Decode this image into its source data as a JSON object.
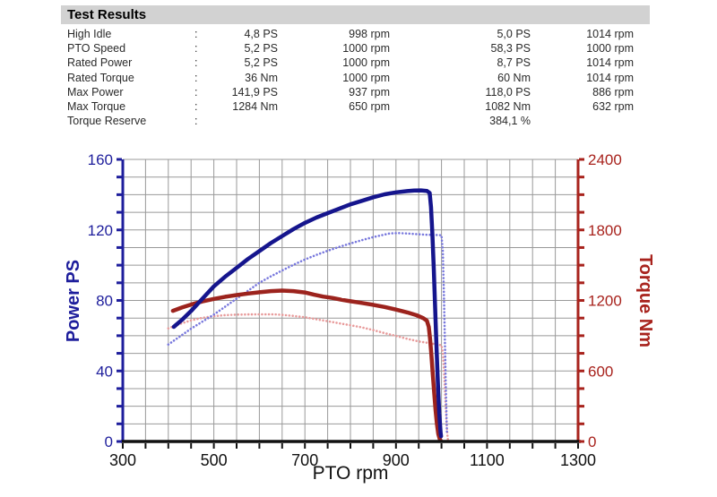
{
  "header": {
    "title": "Test Results"
  },
  "table": {
    "rows": [
      {
        "label": "High Idle",
        "colon": ":",
        "v1": "4,8 PS",
        "v2": "998 rpm",
        "v3": "5,0 PS",
        "v4": "1014 rpm"
      },
      {
        "label": "PTO Speed",
        "colon": ":",
        "v1": "5,2 PS",
        "v2": "1000 rpm",
        "v3": "58,3 PS",
        "v4": "1000 rpm"
      },
      {
        "label": "Rated Power",
        "colon": ":",
        "v1": "5,2 PS",
        "v2": "1000 rpm",
        "v3": "8,7 PS",
        "v4": "1014 rpm"
      },
      {
        "label": "Rated Torque",
        "colon": ":",
        "v1": "36 Nm",
        "v2": "1000 rpm",
        "v3": "60 Nm",
        "v4": "1014 rpm"
      },
      {
        "label": "Max Power",
        "colon": ":",
        "v1": "141,9 PS",
        "v2": "937 rpm",
        "v3": "118,0 PS",
        "v4": "886 rpm"
      },
      {
        "label": "Max Torque",
        "colon": ":",
        "v1": "1284 Nm",
        "v2": "650 rpm",
        "v3": "1082 Nm",
        "v4": "632 rpm"
      },
      {
        "label": "Torque Reserve",
        "colon": ":",
        "v1": "",
        "v2": "",
        "v3": "384,1 %",
        "v4": ""
      }
    ]
  },
  "chart_data": {
    "type": "line",
    "title": "",
    "xlabel": "PTO rpm",
    "ylabel_left": "Power PS",
    "ylabel_right": "Torque Nm",
    "grid": true,
    "legend": "none",
    "colors": {
      "grid": "#999999",
      "x_axis": "#111111",
      "left_axis": "#1e1e9c",
      "right_axis": "#a8231d",
      "power_main": "#15158d",
      "power_pto": "#7878dd",
      "torque_main": "#9c231d",
      "torque_pto": "#e89b9b"
    },
    "x_axis": {
      "min": 300,
      "max": 1300,
      "grid_step": 50,
      "labels": [
        300,
        500,
        700,
        900,
        1100,
        1300
      ]
    },
    "y_left": {
      "min": 0,
      "max": 160,
      "grid_step": 10,
      "labels": [
        0,
        40,
        80,
        120,
        160
      ]
    },
    "y_right": {
      "min": 0,
      "max": 2400,
      "grid_step": 150,
      "labels": [
        0,
        600,
        1200,
        1800,
        2400
      ]
    },
    "series": [
      {
        "name": "torque-pto",
        "axis": "right",
        "unit": "Nm",
        "style": "dotted",
        "width": 2.6,
        "points": [
          [
            400,
            962
          ],
          [
            425,
            1000
          ],
          [
            450,
            1030
          ],
          [
            475,
            1052
          ],
          [
            500,
            1066
          ],
          [
            525,
            1075
          ],
          [
            550,
            1079
          ],
          [
            575,
            1081
          ],
          [
            600,
            1082
          ],
          [
            632,
            1082
          ],
          [
            650,
            1077
          ],
          [
            675,
            1068
          ],
          [
            700,
            1057
          ],
          [
            725,
            1040
          ],
          [
            750,
            1023
          ],
          [
            775,
            1006
          ],
          [
            800,
            989
          ],
          [
            825,
            971
          ],
          [
            850,
            948
          ],
          [
            875,
            922
          ],
          [
            900,
            898
          ],
          [
            925,
            873
          ],
          [
            950,
            851
          ],
          [
            975,
            836
          ],
          [
            990,
            826
          ],
          [
            1000,
            818
          ],
          [
            1003,
            755
          ],
          [
            1005,
            635
          ],
          [
            1007,
            478
          ],
          [
            1009,
            315
          ],
          [
            1011,
            165
          ],
          [
            1013,
            55
          ],
          [
            1014,
            18
          ]
        ]
      },
      {
        "name": "power-pto",
        "axis": "left",
        "unit": "PS",
        "style": "dotted",
        "width": 2.6,
        "points": [
          [
            400,
            55
          ],
          [
            425,
            59.5
          ],
          [
            450,
            64
          ],
          [
            475,
            68
          ],
          [
            500,
            72
          ],
          [
            525,
            76.5
          ],
          [
            550,
            81
          ],
          [
            575,
            85.5
          ],
          [
            600,
            90
          ],
          [
            625,
            93.6
          ],
          [
            650,
            97
          ],
          [
            675,
            100.2
          ],
          [
            700,
            103.2
          ],
          [
            725,
            105.8
          ],
          [
            750,
            108.2
          ],
          [
            775,
            110.3
          ],
          [
            800,
            112.3
          ],
          [
            825,
            114.2
          ],
          [
            850,
            115.9
          ],
          [
            870,
            117.1
          ],
          [
            886,
            118
          ],
          [
            905,
            118.2
          ],
          [
            925,
            118
          ],
          [
            945,
            117.6
          ],
          [
            965,
            117.3
          ],
          [
            985,
            117.2
          ],
          [
            1000,
            117
          ],
          [
            1003,
            108
          ],
          [
            1005,
            88
          ],
          [
            1007,
            62
          ],
          [
            1009,
            36
          ],
          [
            1011,
            14
          ],
          [
            1012,
            5
          ]
        ]
      },
      {
        "name": "torque-main",
        "axis": "right",
        "unit": "Nm",
        "style": "solid",
        "width": 4.5,
        "points": [
          [
            410,
            1112
          ],
          [
            430,
            1140
          ],
          [
            450,
            1165
          ],
          [
            475,
            1192
          ],
          [
            500,
            1213
          ],
          [
            525,
            1231
          ],
          [
            550,
            1246
          ],
          [
            575,
            1259
          ],
          [
            600,
            1269
          ],
          [
            625,
            1279
          ],
          [
            650,
            1284
          ],
          [
            675,
            1279
          ],
          [
            700,
            1268
          ],
          [
            720,
            1249
          ],
          [
            740,
            1233
          ],
          [
            760,
            1221
          ],
          [
            780,
            1206
          ],
          [
            800,
            1193
          ],
          [
            825,
            1179
          ],
          [
            850,
            1163
          ],
          [
            875,
            1144
          ],
          [
            900,
            1122
          ],
          [
            925,
            1098
          ],
          [
            945,
            1074
          ],
          [
            960,
            1049
          ],
          [
            968,
            1028
          ],
          [
            972,
            975
          ],
          [
            975,
            870
          ],
          [
            978,
            730
          ],
          [
            981,
            570
          ],
          [
            984,
            410
          ],
          [
            987,
            265
          ],
          [
            990,
            150
          ],
          [
            993,
            65
          ],
          [
            996,
            22
          ],
          [
            998,
            8
          ]
        ]
      },
      {
        "name": "power-main",
        "axis": "left",
        "unit": "PS",
        "style": "solid",
        "width": 4.5,
        "points": [
          [
            412,
            65
          ],
          [
            430,
            69
          ],
          [
            450,
            74
          ],
          [
            475,
            81
          ],
          [
            500,
            88
          ],
          [
            525,
            93.5
          ],
          [
            550,
            98.5
          ],
          [
            575,
            103.5
          ],
          [
            600,
            108
          ],
          [
            625,
            112.5
          ],
          [
            650,
            116.5
          ],
          [
            675,
            120.5
          ],
          [
            700,
            124
          ],
          [
            725,
            127
          ],
          [
            750,
            129.5
          ],
          [
            775,
            132
          ],
          [
            800,
            134.5
          ],
          [
            825,
            136.5
          ],
          [
            850,
            138.5
          ],
          [
            875,
            140.2
          ],
          [
            900,
            141.3
          ],
          [
            925,
            142
          ],
          [
            940,
            142.3
          ],
          [
            955,
            142.4
          ],
          [
            968,
            142.1
          ],
          [
            974,
            141
          ],
          [
            977,
            133
          ],
          [
            980,
            118
          ],
          [
            983,
            98
          ],
          [
            986,
            76
          ],
          [
            989,
            54
          ],
          [
            992,
            34
          ],
          [
            995,
            16
          ],
          [
            998,
            5
          ],
          [
            999,
            3
          ]
        ]
      }
    ]
  }
}
